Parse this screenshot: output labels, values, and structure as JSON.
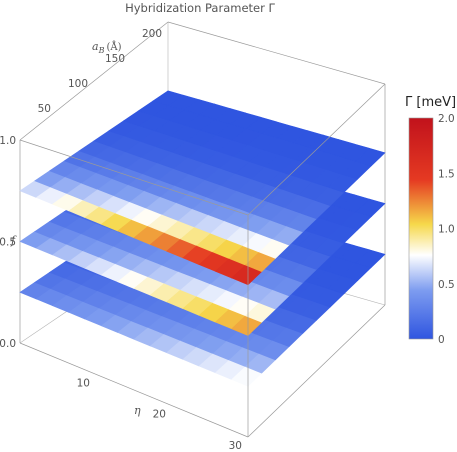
{
  "chart_data": {
    "type": "surface3d",
    "title": "Hybridization  Parameter Γ",
    "axes": {
      "x": {
        "label": "η",
        "ticks": [
          "10",
          "20",
          "30"
        ],
        "range": [
          0,
          30
        ]
      },
      "y": {
        "label_main": "a",
        "label_sub": "B",
        "label_unit": "(Å)",
        "ticks": [
          "50",
          "100",
          "150",
          "200"
        ],
        "range": [
          0,
          200
        ]
      },
      "z": {
        "label": "f",
        "ticks": [
          "0.0",
          "0.5",
          "1.0"
        ],
        "range": [
          0,
          1
        ]
      }
    },
    "series": [
      {
        "f": 0.25,
        "peak": 0.9,
        "min": 0.0
      },
      {
        "f": 0.5,
        "peak": 1.4,
        "min": 0.0
      },
      {
        "f": 0.75,
        "peak": 2.0,
        "min": 0.0
      }
    ],
    "colorbar": {
      "title": "Γ [meV]",
      "range": [
        0,
        2.0
      ],
      "ticks": [
        "0",
        "0.5",
        "1.0",
        "1.5",
        "2.0"
      ],
      "colors": [
        "#2f55e0",
        "#7d9cf0",
        "#ffffff",
        "#f6d84a",
        "#e53a22",
        "#c1121c"
      ]
    }
  }
}
